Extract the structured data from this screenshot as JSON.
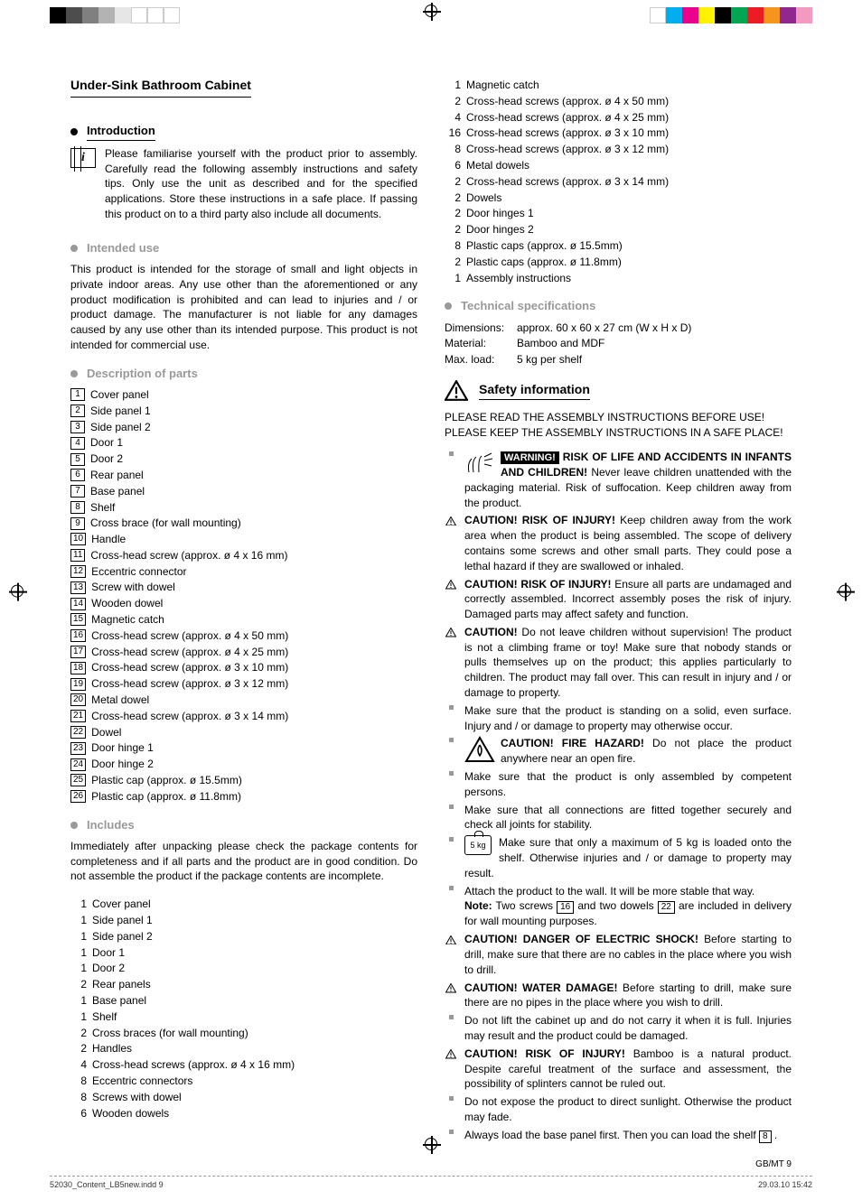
{
  "title": "Under-Sink Bathroom Cabinet",
  "sections": {
    "intro": {
      "heading": "Introduction",
      "text": "Please familiarise yourself with the product prior to assembly. Carefully read the following assembly instructions and safety tips. Only use the unit as described and for the specified applications. Store these instructions in a safe place. If passing this product on to a third party also include all documents."
    },
    "intended": {
      "heading": "Intended use",
      "text": "This product is intended for the storage of small and light objects in private indoor areas. Any use other than the aforementioned or any product modification is prohibited and can lead to injuries and / or product damage. The manufacturer is not liable for any damages caused by any use other than its intended purpose. This product is not intended for commercial use."
    },
    "parts": {
      "heading": "Description of parts"
    },
    "includes": {
      "heading": "Includes",
      "text": "Immediately after unpacking please check the package contents for completeness and if all parts and the product are in good condition. Do not assemble the product if the package contents are incomplete."
    },
    "tech": {
      "heading": "Technical specifications"
    },
    "safety": {
      "heading": "Safety information",
      "caps": "PLEASE READ THE ASSEMBLY INSTRUCTIONS BEFORE USE! PLEASE KEEP THE ASSEMBLY INSTRUCTIONS IN A SAFE PLACE!"
    }
  },
  "parts_list": [
    {
      "n": "1",
      "t": "Cover panel"
    },
    {
      "n": "2",
      "t": "Side panel 1"
    },
    {
      "n": "3",
      "t": "Side panel 2"
    },
    {
      "n": "4",
      "t": "Door 1"
    },
    {
      "n": "5",
      "t": "Door 2"
    },
    {
      "n": "6",
      "t": "Rear panel"
    },
    {
      "n": "7",
      "t": "Base panel"
    },
    {
      "n": "8",
      "t": "Shelf"
    },
    {
      "n": "9",
      "t": "Cross brace (for wall mounting)"
    },
    {
      "n": "10",
      "t": "Handle"
    },
    {
      "n": "11",
      "t": "Cross-head screw (approx. ø 4 x 16 mm)"
    },
    {
      "n": "12",
      "t": "Eccentric connector"
    },
    {
      "n": "13",
      "t": "Screw with dowel"
    },
    {
      "n": "14",
      "t": "Wooden dowel"
    },
    {
      "n": "15",
      "t": "Magnetic catch"
    },
    {
      "n": "16",
      "t": "Cross-head screw (approx. ø 4 x 50 mm)"
    },
    {
      "n": "17",
      "t": "Cross-head screw (approx. ø 4 x 25 mm)"
    },
    {
      "n": "18",
      "t": "Cross-head screw (approx. ø 3 x 10 mm)"
    },
    {
      "n": "19",
      "t": "Cross-head screw (approx. ø 3 x 12 mm)"
    },
    {
      "n": "20",
      "t": "Metal dowel"
    },
    {
      "n": "21",
      "t": "Cross-head screw (approx. ø 3 x 14 mm)"
    },
    {
      "n": "22",
      "t": "Dowel"
    },
    {
      "n": "23",
      "t": "Door hinge 1"
    },
    {
      "n": "24",
      "t": "Door hinge 2"
    },
    {
      "n": "25",
      "t": "Plastic cap (approx. ø 15.5mm)"
    },
    {
      "n": "26",
      "t": "Plastic cap (approx. ø 11.8mm)"
    }
  ],
  "includes_list_left": [
    {
      "q": "1",
      "t": "Cover panel"
    },
    {
      "q": "1",
      "t": "Side panel 1"
    },
    {
      "q": "1",
      "t": "Side panel 2"
    },
    {
      "q": "1",
      "t": "Door 1"
    },
    {
      "q": "1",
      "t": "Door 2"
    },
    {
      "q": "2",
      "t": "Rear panels"
    },
    {
      "q": "1",
      "t": "Base panel"
    },
    {
      "q": "1",
      "t": "Shelf"
    },
    {
      "q": "2",
      "t": "Cross braces (for wall mounting)"
    },
    {
      "q": "2",
      "t": "Handles"
    },
    {
      "q": "4",
      "t": "Cross-head screws (approx. ø 4 x 16 mm)"
    },
    {
      "q": "8",
      "t": "Eccentric connectors"
    },
    {
      "q": "8",
      "t": "Screws with dowel"
    },
    {
      "q": "6",
      "t": "Wooden dowels"
    }
  ],
  "includes_list_right": [
    {
      "q": "1",
      "t": "Magnetic catch"
    },
    {
      "q": "2",
      "t": "Cross-head screws (approx. ø 4 x 50 mm)"
    },
    {
      "q": "4",
      "t": "Cross-head screws (approx. ø 4 x 25 mm)"
    },
    {
      "q": "16",
      "t": "Cross-head screws (approx. ø 3 x 10 mm)"
    },
    {
      "q": "8",
      "t": "Cross-head screws (approx. ø 3 x 12 mm)"
    },
    {
      "q": "6",
      "t": "Metal dowels"
    },
    {
      "q": "2",
      "t": "Cross-head screws (approx. ø 3 x 14 mm)"
    },
    {
      "q": "2",
      "t": "Dowels"
    },
    {
      "q": "2",
      "t": "Door hinges 1"
    },
    {
      "q": "2",
      "t": "Door hinges 2"
    },
    {
      "q": "8",
      "t": "Plastic caps (approx. ø 15.5mm)"
    },
    {
      "q": "2",
      "t": "Plastic caps (approx. ø 11.8mm)"
    },
    {
      "q": "1",
      "t": "Assembly instructions"
    }
  ],
  "tech_specs": [
    {
      "l": "Dimensions:",
      "v": "approx. 60 x 60 x 27 cm (W x H x D)"
    },
    {
      "l": "Material:",
      "v": "Bamboo and MDF"
    },
    {
      "l": "Max. load:",
      "v": "5 kg per shelf"
    }
  ],
  "safety_items": [
    {
      "mark": "sq",
      "icon": "hands",
      "html": "<span class='black-warn'>WARNING!</span> <b>RISK OF LIFE AND ACCIDENTS IN INFANTS AND CHILDREN!</b> Never leave children unattended with the packaging material. Risk of suffocation. Keep children away from the product."
    },
    {
      "mark": "tri",
      "html": "<b>CAUTION! RISK OF INJURY!</b> Keep children away from the work area when the product is being assembled. The scope of delivery contains some screws and other small parts. They could pose a lethal hazard if they are swallowed or inhaled."
    },
    {
      "mark": "tri",
      "html": "<b>CAUTION! RISK OF INJURY!</b> Ensure all parts are undamaged and correctly assembled. Incorrect assembly poses the risk of injury. Damaged parts may affect safety and function."
    },
    {
      "mark": "tri",
      "html": "<b>CAUTION!</b> Do not leave children without supervision! The product is not a climbing frame or toy! Make sure that nobody stands or pulls themselves up on the product; this applies particularly to children. The product may fall over. This can result in injury and / or damage to property."
    },
    {
      "mark": "sq",
      "html": "Make sure that the product is standing on a solid, even surface. Injury and / or damage to property may otherwise occur."
    },
    {
      "mark": "sq",
      "icon": "fire",
      "html": "<b>CAUTION! FIRE HAZARD!</b> Do not place the product anywhere near an open fire."
    },
    {
      "mark": "sq",
      "html": "Make sure that the product is only assembled by competent persons."
    },
    {
      "mark": "sq",
      "html": "Make sure that all connections are fitted together securely and check all joints for stability."
    },
    {
      "mark": "sq",
      "icon": "kg",
      "html": "Make sure that only a maximum of 5 kg is loaded onto the shelf. Otherwise injuries and / or damage to property may result."
    },
    {
      "mark": "sq",
      "html": "Attach the product to the wall. It will be more stable that way.<br><b>Note:</b> Two screws <span class='num-inline'>16</span> and two dowels <span class='num-inline'>22</span> are included in delivery for wall mounting purposes."
    },
    {
      "mark": "tri",
      "html": "<b>CAUTION! DANGER OF ELECTRIC SHOCK!</b> Before starting to drill, make sure that there are no cables in the place where you wish to drill."
    },
    {
      "mark": "tri",
      "html": "<b>CAUTION! WATER DAMAGE!</b> Before starting to drill, make sure there are no pipes in the place where you wish to drill."
    },
    {
      "mark": "sq",
      "html": "Do not lift the cabinet up and do not carry it when it is full. Injuries may result and the product could be damaged."
    },
    {
      "mark": "tri",
      "html": "<b>CAUTION! RISK OF INJURY!</b> Bamboo is a natural product. Despite careful treatment of the surface and assessment, the possibility of splinters cannot be ruled out."
    },
    {
      "mark": "sq",
      "html": "Do not expose the product to direct sunlight. Otherwise the product may fade."
    },
    {
      "mark": "sq",
      "html": "Always load the base panel first. Then you can load the shelf <span class='num-inline'>8</span> ."
    }
  ],
  "footer": "GB/MT    9",
  "meta_left": "52030_Content_LB5new.indd   9",
  "meta_right": "29.03.10   15:42",
  "colorbar_left": [
    "#000",
    "#4d4d4d",
    "#808080",
    "#b3b3b3",
    "#e6e6e6",
    "#fff",
    "#fff",
    "#fff"
  ],
  "colorbar_right": [
    "#fff",
    "#00aeef",
    "#ec008c",
    "#fff200",
    "#000",
    "#00a651",
    "#ed1c24",
    "#f7941d",
    "#92278f",
    "#f49ac1"
  ]
}
